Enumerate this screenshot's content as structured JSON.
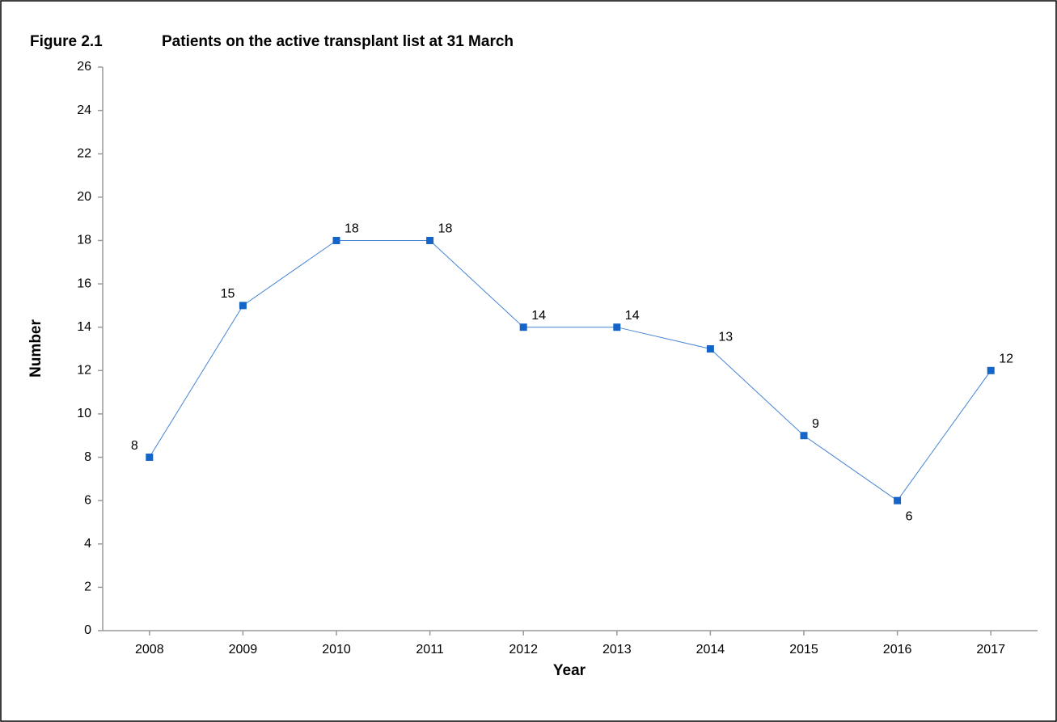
{
  "chart_data": {
    "type": "line",
    "figure_label": "Figure 2.1",
    "title": "Patients on the active transplant list at 31 March",
    "x_label": "Year",
    "y_label": "Number",
    "categories": [
      "2008",
      "2009",
      "2010",
      "2011",
      "2012",
      "2013",
      "2014",
      "2015",
      "2016",
      "2017"
    ],
    "values": [
      8,
      15,
      18,
      18,
      14,
      14,
      13,
      9,
      6,
      12
    ],
    "color": "#1565c8",
    "ylim": [
      0,
      26
    ],
    "yticks": [
      0,
      2,
      4,
      6,
      8,
      10,
      12,
      14,
      16,
      18,
      20,
      22,
      24,
      26
    ]
  }
}
